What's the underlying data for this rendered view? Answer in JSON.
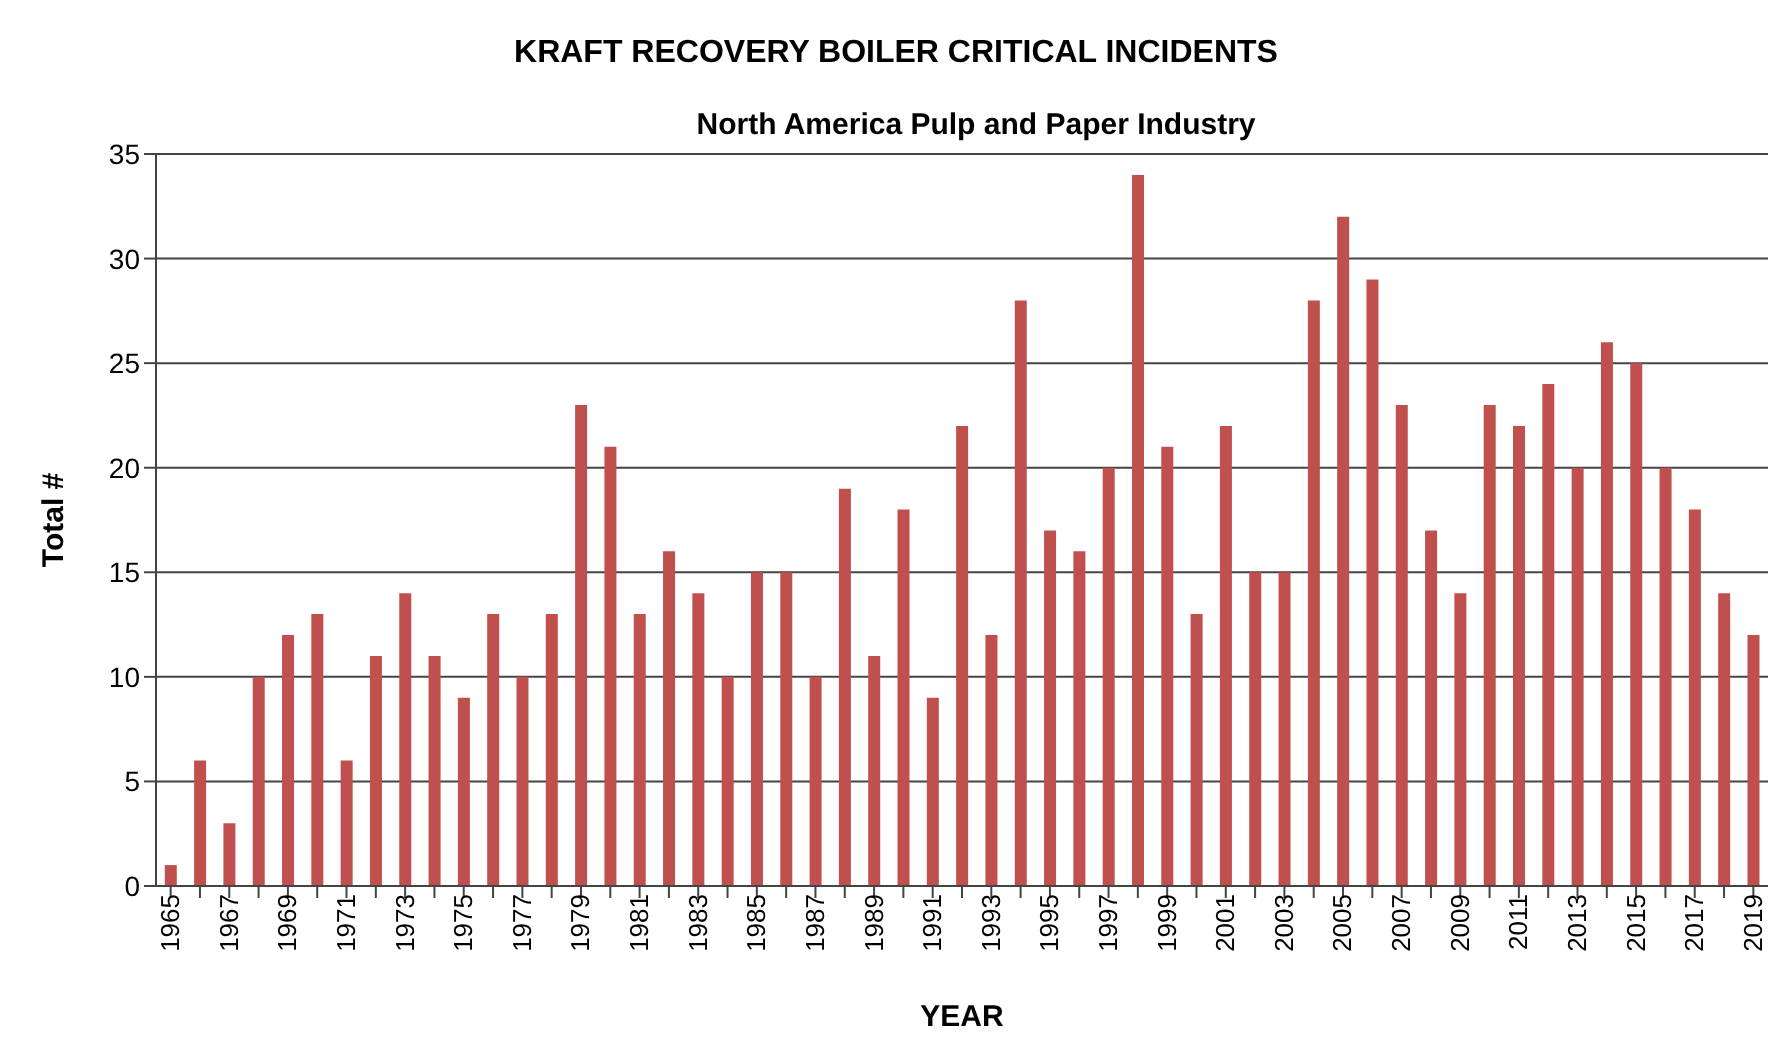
{
  "chart_data": {
    "type": "bar",
    "title": "KRAFT RECOVERY BOILER CRITICAL INCIDENTS",
    "subtitle": "North America Pulp and Paper Industry",
    "xlabel": "YEAR",
    "ylabel": "Total #",
    "categories": [
      "1965",
      null,
      "1967",
      null,
      "1969",
      null,
      "1971",
      null,
      "1973",
      null,
      "1975",
      null,
      "1977",
      null,
      "1979",
      null,
      "1981",
      null,
      "1983",
      null,
      "1985",
      null,
      "1987",
      null,
      "1989",
      null,
      "1991",
      null,
      "1993",
      null,
      "1995",
      null,
      "1997",
      null,
      "1999",
      null,
      "2001",
      null,
      "2003",
      null,
      "2005",
      null,
      "2007",
      null,
      "2009",
      null,
      "2011",
      null,
      "2013",
      null,
      "2015",
      null,
      "2017",
      null,
      "2019"
    ],
    "values": [
      1,
      6,
      3,
      10,
      12,
      13,
      6,
      11,
      14,
      11,
      9,
      13,
      10,
      13,
      23,
      21,
      13,
      16,
      14,
      10,
      15,
      15,
      10,
      19,
      11,
      18,
      9,
      22,
      12,
      28,
      17,
      16,
      20,
      34,
      21,
      13,
      22,
      15,
      15,
      28,
      32,
      29,
      23,
      17,
      14,
      23,
      22,
      24,
      20,
      26,
      25,
      20,
      18,
      14,
      12
    ],
    "color": "#c0504d",
    "ylim": [
      0,
      35
    ],
    "yticks": [
      0,
      5,
      10,
      15,
      20,
      25,
      30,
      35
    ],
    "grid": "y"
  }
}
